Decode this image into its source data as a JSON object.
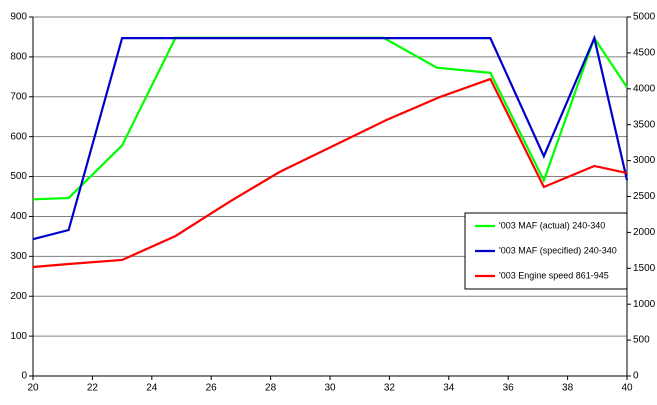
{
  "chart_data": {
    "type": "line",
    "xlim": [
      20,
      40
    ],
    "xticks": [
      20,
      22,
      24,
      26,
      28,
      30,
      32,
      34,
      36,
      38,
      40
    ],
    "ylim": [
      0,
      900
    ],
    "yticks": [
      0,
      100,
      200,
      300,
      400,
      500,
      600,
      700,
      800,
      900
    ],
    "y2lim": [
      0,
      5000
    ],
    "y2ticks": [
      0,
      500,
      1000,
      1500,
      2000,
      2500,
      3000,
      3500,
      4000,
      4500,
      5000
    ],
    "grid": true,
    "legend": "right",
    "series": [
      {
        "name": "'003 MAF (actual) 240-340",
        "color": "#00ff00",
        "x": [
          20,
          21.2,
          23,
          24.8,
          31.8,
          33.6,
          35.4,
          37.2,
          38.9,
          40
        ],
        "values": [
          443,
          446,
          578,
          848,
          848,
          773,
          760,
          490,
          847,
          724
        ]
      },
      {
        "name": "'003 MAF (specified) 240-340",
        "color": "#0000cc",
        "x": [
          20,
          21.2,
          23,
          35.4,
          37.2,
          38.9,
          40
        ],
        "values": [
          343,
          366,
          847,
          847,
          551,
          847,
          491
        ]
      },
      {
        "name": "'003 Engine speed 861-945",
        "color": "#ff0000",
        "axis": "y2",
        "x": [
          20,
          21.2,
          23,
          24.8,
          26.6,
          28.3,
          30.1,
          31.9,
          33.7,
          35.4,
          37.2,
          38.9,
          40
        ],
        "values": [
          1518,
          1560,
          1616,
          1950,
          2423,
          2841,
          3203,
          3565,
          3886,
          4136,
          2632,
          2925,
          2827
        ]
      }
    ]
  }
}
